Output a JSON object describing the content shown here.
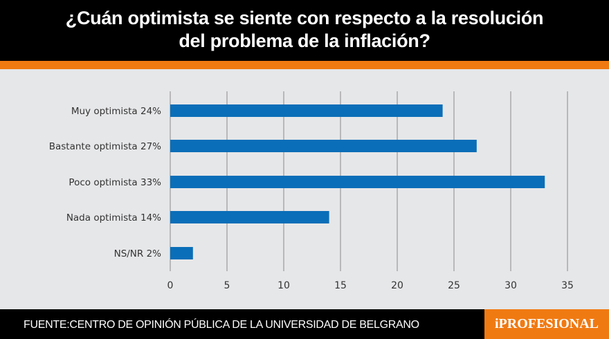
{
  "header": {
    "title_line1": "¿Cuán optimista se siente con respecto a la resolución",
    "title_line2": "del problema de la inflación?"
  },
  "footer": {
    "source": "FUENTE:CENTRO DE OPINIÓN PÚBLICA DE LA UNIVERSIDAD DE BELGRANO",
    "logo": "iPROFESIONAL"
  },
  "colors": {
    "bar": "#0a6eb8",
    "accent": "#f07a12",
    "background": "#e6e7e9"
  },
  "chart_data": {
    "type": "bar",
    "orientation": "horizontal",
    "categories": [
      "Muy optimista  24%",
      "Bastante optimista  27%",
      "Poco optimista  33%",
      "Nada optimista  14%",
      "NS/NR  2%"
    ],
    "values": [
      24,
      27,
      33,
      14,
      2
    ],
    "xlim": [
      0,
      35
    ],
    "xticks": [
      "0",
      "5",
      "10",
      "15",
      "20",
      "25",
      "30",
      "35"
    ],
    "grid": true
  }
}
